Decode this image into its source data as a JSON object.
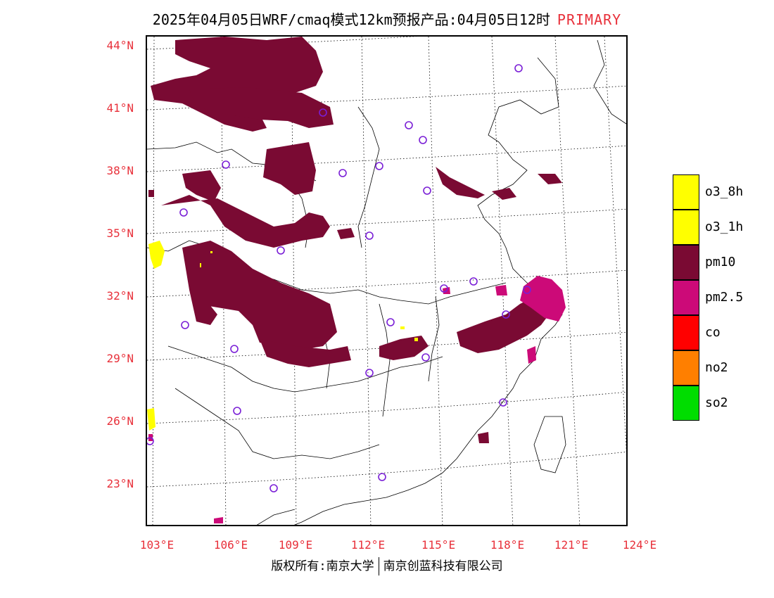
{
  "title": {
    "main": "2025年04月05日WRF/cmaq模式12km预报产品:04月05日12时",
    "tag": "PRIMARY"
  },
  "map": {
    "lat_labels": [
      "44°N",
      "41°N",
      "38°N",
      "35°N",
      "32°N",
      "29°N",
      "26°N",
      "23°N"
    ],
    "lon_labels": [
      "103°E",
      "106°E",
      "109°E",
      "112°E",
      "115°E",
      "118°E",
      "121°E",
      "124°E"
    ],
    "pollutant_colors": {
      "pm10": "#7a0a33",
      "pm2_5": "#cc0a78",
      "o3": "#ffff00",
      "station_marker": "#7a1fd6"
    }
  },
  "legend": [
    {
      "label": "o3_8h",
      "color": "#ffff00"
    },
    {
      "label": "o3_1h",
      "color": "#ffff00"
    },
    {
      "label": "pm10",
      "color": "#7a0a33"
    },
    {
      "label": "pm2.5",
      "color": "#cc0a78"
    },
    {
      "label": "co",
      "color": "#ff0000"
    },
    {
      "label": "no2",
      "color": "#ff7f00"
    },
    {
      "label": "so2",
      "color": "#00dd00"
    }
  ],
  "footer": {
    "left": "版权所有:南京大学",
    "right": "南京创蓝科技有限公司"
  }
}
